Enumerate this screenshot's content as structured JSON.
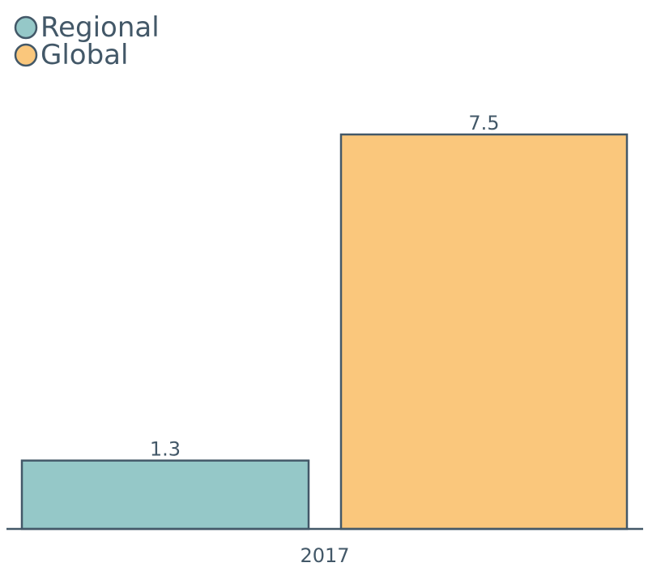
{
  "chart_data": {
    "type": "bar",
    "categories": [
      "2017"
    ],
    "series": [
      {
        "name": "Regional",
        "values": [
          1.3
        ],
        "color": "#95c8c8"
      },
      {
        "name": "Global",
        "values": [
          7.5
        ],
        "color": "#fac77c"
      }
    ],
    "data_labels": [
      "1.3",
      "7.5"
    ],
    "ylim": [
      0,
      7.5
    ],
    "grid": false,
    "legend_position": "top-left",
    "colors": {
      "stroke": "#435868",
      "text": "#435868"
    }
  }
}
